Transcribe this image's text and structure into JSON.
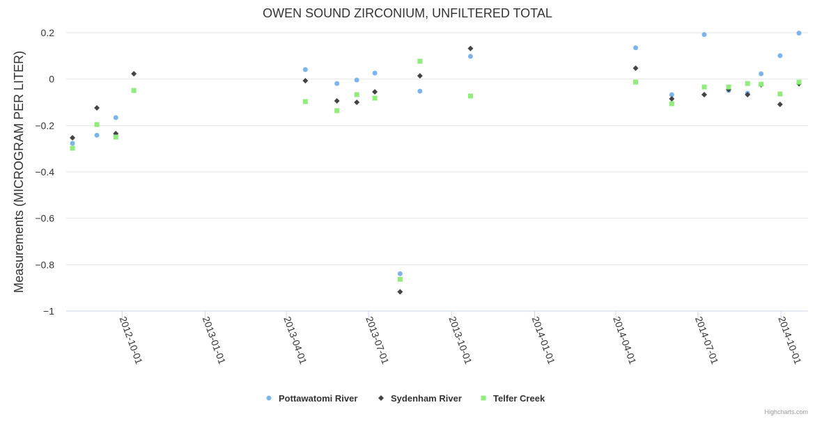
{
  "chart_data": {
    "type": "scatter",
    "title": "OWEN SOUND ZIRCONIUM, UNFILTERED TOTAL",
    "xlabel": "",
    "ylabel": "Measurements (MICROGRAM PER LITER)",
    "ylim": [
      -1,
      0.2
    ],
    "xlim": [
      "2012-07-31",
      "2014-10-31"
    ],
    "yticks": [
      0.2,
      0,
      -0.2,
      -0.4,
      -0.6,
      -0.8,
      -1
    ],
    "ytick_labels": [
      "0.2",
      "0",
      "−0.2",
      "−0.4",
      "−0.6",
      "−0.8",
      "−1"
    ],
    "xticks": [
      "2012-10-01",
      "2013-01-01",
      "2013-04-01",
      "2013-07-01",
      "2013-10-01",
      "2014-01-01",
      "2014-04-01",
      "2014-07-01",
      "2014-10-01"
    ],
    "grid": "horizontal",
    "legend": "bottom-center",
    "credits": "Highcharts.com",
    "series": [
      {
        "name": "Pottawatomi River",
        "color": "#7cb5ec",
        "marker": "circle",
        "points": [
          [
            "2012-08-07",
            -0.277
          ],
          [
            "2012-09-03",
            -0.242
          ],
          [
            "2012-09-24",
            -0.166
          ],
          [
            "2013-04-22",
            0.041
          ],
          [
            "2013-05-27",
            -0.019
          ],
          [
            "2013-06-18",
            -0.004
          ],
          [
            "2013-07-08",
            0.026
          ],
          [
            "2013-08-05",
            -0.839
          ],
          [
            "2013-08-27",
            -0.052
          ],
          [
            "2013-10-22",
            0.098
          ],
          [
            "2014-04-23",
            0.135
          ],
          [
            "2014-06-02",
            -0.067
          ],
          [
            "2014-07-08",
            0.192
          ],
          [
            "2014-08-04",
            -0.049
          ],
          [
            "2014-08-25",
            -0.061
          ],
          [
            "2014-09-09",
            0.023
          ],
          [
            "2014-09-30",
            0.101
          ],
          [
            "2014-10-21",
            0.198
          ]
        ]
      },
      {
        "name": "Sydenham River",
        "color": "#434348",
        "marker": "diamond",
        "points": [
          [
            "2012-08-07",
            -0.253
          ],
          [
            "2012-09-03",
            -0.124
          ],
          [
            "2012-09-24",
            -0.235
          ],
          [
            "2012-10-14",
            0.023
          ],
          [
            "2013-04-22",
            -0.007
          ],
          [
            "2013-05-27",
            -0.094
          ],
          [
            "2013-06-18",
            -0.1
          ],
          [
            "2013-07-08",
            -0.055
          ],
          [
            "2013-08-05",
            -0.917
          ],
          [
            "2013-08-27",
            0.014
          ],
          [
            "2013-10-22",
            0.132
          ],
          [
            "2014-04-23",
            0.047
          ],
          [
            "2014-06-02",
            -0.085
          ],
          [
            "2014-07-08",
            -0.067
          ],
          [
            "2014-08-04",
            -0.045
          ],
          [
            "2014-08-25",
            -0.067
          ],
          [
            "2014-09-09",
            -0.025
          ],
          [
            "2014-09-30",
            -0.109
          ],
          [
            "2014-10-21",
            -0.02
          ]
        ]
      },
      {
        "name": "Telfer Creek",
        "color": "#90ed7d",
        "marker": "square",
        "points": [
          [
            "2012-08-07",
            -0.298
          ],
          [
            "2012-09-03",
            -0.196
          ],
          [
            "2012-09-24",
            -0.25
          ],
          [
            "2012-10-14",
            -0.049
          ],
          [
            "2013-04-22",
            -0.097
          ],
          [
            "2013-05-27",
            -0.136
          ],
          [
            "2013-06-18",
            -0.067
          ],
          [
            "2013-07-08",
            -0.082
          ],
          [
            "2013-08-05",
            -0.863
          ],
          [
            "2013-08-27",
            0.077
          ],
          [
            "2013-10-22",
            -0.073
          ],
          [
            "2014-04-23",
            -0.013
          ],
          [
            "2014-06-02",
            -0.106
          ],
          [
            "2014-07-08",
            -0.034
          ],
          [
            "2014-08-04",
            -0.034
          ],
          [
            "2014-08-25",
            -0.019
          ],
          [
            "2014-09-09",
            -0.022
          ],
          [
            "2014-09-30",
            -0.064
          ],
          [
            "2014-10-21",
            -0.013
          ]
        ]
      }
    ]
  }
}
